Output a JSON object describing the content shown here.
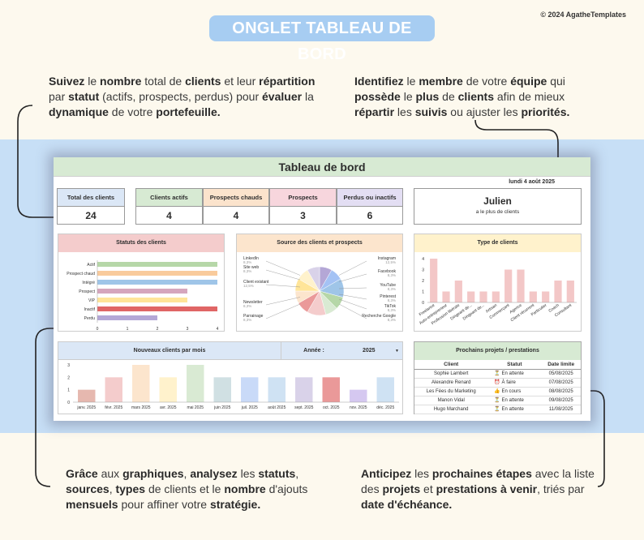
{
  "header": {
    "title": "ONGLET TABLEAU DE BORD",
    "copyright": "© 2024 AgatheTemplates"
  },
  "notes": {
    "top_left": [
      [
        "Suivez",
        "b"
      ],
      [
        " le ",
        ""
      ],
      [
        "nombre",
        "b"
      ],
      [
        " total de ",
        ""
      ],
      [
        "clients",
        "b"
      ],
      [
        " et leur ",
        ""
      ],
      [
        "répartition",
        "b"
      ],
      [
        " par ",
        ""
      ],
      [
        "statut",
        "b"
      ],
      [
        " (actifs, prospects, perdus) pour ",
        ""
      ],
      [
        "évaluer",
        "b"
      ],
      [
        " la ",
        ""
      ],
      [
        "dynamique",
        "b"
      ],
      [
        " de votre ",
        ""
      ],
      [
        "portefeuille.",
        "b"
      ]
    ],
    "top_right": [
      [
        "Identifiez",
        "b"
      ],
      [
        " le ",
        ""
      ],
      [
        "membre",
        "b"
      ],
      [
        " de votre ",
        ""
      ],
      [
        "équipe",
        "b"
      ],
      [
        " qui ",
        ""
      ],
      [
        "possède",
        "b"
      ],
      [
        " le ",
        ""
      ],
      [
        "plus",
        "b"
      ],
      [
        " de ",
        ""
      ],
      [
        "clients",
        "b"
      ],
      [
        " afin de mieux ",
        ""
      ],
      [
        "répartir",
        "b"
      ],
      [
        " les ",
        ""
      ],
      [
        "suivis",
        "b"
      ],
      [
        " ou ajuster les ",
        ""
      ],
      [
        "priorités.",
        "b"
      ]
    ],
    "bottom_left": [
      [
        "Grâce",
        "b"
      ],
      [
        " aux ",
        ""
      ],
      [
        "graphiques",
        "b"
      ],
      [
        ", ",
        ""
      ],
      [
        "analysez",
        "b"
      ],
      [
        " les ",
        ""
      ],
      [
        "statuts",
        "b"
      ],
      [
        ", ",
        ""
      ],
      [
        "sources",
        "b"
      ],
      [
        ", ",
        ""
      ],
      [
        "types",
        "b"
      ],
      [
        " de clients et le ",
        ""
      ],
      [
        "nombre",
        "b"
      ],
      [
        " d'ajouts ",
        ""
      ],
      [
        "mensuels",
        "b"
      ],
      [
        " pour affiner votre ",
        ""
      ],
      [
        "stratégie.",
        "b"
      ]
    ],
    "bottom_right": [
      [
        "Anticipez",
        "b"
      ],
      [
        " les ",
        ""
      ],
      [
        "prochaines étapes",
        "b"
      ],
      [
        " avec la liste des ",
        ""
      ],
      [
        "projets",
        "b"
      ],
      [
        " et ",
        ""
      ],
      [
        "prestations à venir",
        "b"
      ],
      [
        ", triés par ",
        ""
      ],
      [
        "date d'échéance.",
        "b"
      ]
    ]
  },
  "dashboard": {
    "title": "Tableau de bord",
    "date": "lundi 4 août 2025",
    "kpis": [
      {
        "label": "Total des clients",
        "value": "24",
        "color": "#dbe7f6"
      },
      {
        "label": "Clients actifs",
        "value": "4",
        "color": "#d7ead3"
      },
      {
        "label": "Prospects chauds",
        "value": "4",
        "color": "#fbe3cc"
      },
      {
        "label": "Prospects",
        "value": "3",
        "color": "#f7d6dd"
      },
      {
        "label": "Perdus ou inactifs",
        "value": "6",
        "color": "#e3def3"
      }
    ],
    "top_member": {
      "name": "Julien",
      "subtitle": "a le plus de clients"
    },
    "status_panel": {
      "title": "Statuts des clients",
      "header_color": "#f4cccc"
    },
    "source_panel": {
      "title": "Source des clients et prospects",
      "header_color": "#fce5cd"
    },
    "type_panel": {
      "title": "Type de clients",
      "header_color": "#fff2cc"
    },
    "monthly_panel": {
      "title": "Nouveaux clients par mois",
      "year_label": "Année :",
      "year": "2025",
      "header_color": "#dbe7f6"
    },
    "projects": {
      "title": "Prochains projets / prestations",
      "columns": [
        "Client",
        "Statut",
        "Date limite"
      ],
      "rows": [
        {
          "client": "Sophie Lambert",
          "icon": "⏳",
          "status": "En attente",
          "date": "05/08/2025"
        },
        {
          "client": "Alexandre Renard",
          "icon": "⏰",
          "status": "À faire",
          "date": "07/08/2025"
        },
        {
          "client": "Les Fées du Marketing",
          "icon": "👍",
          "status": "En cours",
          "date": "08/08/2025"
        },
        {
          "client": "Manon Vidal",
          "icon": "⏳",
          "status": "En attente",
          "date": "09/08/2025"
        },
        {
          "client": "Hugo Marchand",
          "icon": "⏳",
          "status": "En attente",
          "date": "11/08/2025"
        }
      ]
    }
  },
  "chart_data": [
    {
      "type": "bar",
      "orientation": "horizontal",
      "title": "Statuts des clients",
      "categories": [
        "Actif",
        "Prospect chaud",
        "Intégré",
        "Prospect",
        "VIP",
        "Inactif",
        "Perdu"
      ],
      "values": [
        4,
        4,
        4,
        3,
        3,
        4,
        2
      ],
      "colors": [
        "#b6d7a8",
        "#f9cb9c",
        "#9fc5e8",
        "#d5a6bd",
        "#ffe599",
        "#e06666",
        "#b4a7d6"
      ],
      "xlim": [
        0,
        4
      ],
      "xticks": [
        "0",
        "1",
        "2",
        "3",
        "4"
      ]
    },
    {
      "type": "pie",
      "title": "Source des clients et prospects",
      "labels": [
        "LinkedIn",
        "Site web",
        "Client existant",
        "Newsletter",
        "Parrainage",
        "Instagram",
        "Facebook",
        "YouTube",
        "Pinterest",
        "TikTok",
        "Recherche Google"
      ],
      "values": [
        8.3,
        8.3,
        12.5,
        8.3,
        8.3,
        12.5,
        8.3,
        8.3,
        8.3,
        8.3,
        8.3
      ],
      "pct_labels": [
        "8,3%",
        "8,3%",
        "12,5%",
        "8,3%",
        "8,3%",
        "12,5%",
        "8,3%",
        "8,3%",
        "8,3%",
        "8,3%",
        "8,3%"
      ],
      "colors": [
        "#b4a7d6",
        "#a4c2f4",
        "#9fc5e8",
        "#b6d7a8",
        "#d9ead3",
        "#f4cccc",
        "#ea9999",
        "#fce5cd",
        "#ffe599",
        "#fff2cc",
        "#d9d2e9"
      ]
    },
    {
      "type": "bar",
      "title": "Type de clients",
      "categories": [
        "Freelance",
        "Auto-entrepreneur",
        "Profession libérale",
        "Dirigeant de...",
        "Dirigeant de...",
        "Artisan",
        "Commerçant",
        "Agence",
        "Client récurrent",
        "Particulier",
        "Coach",
        "Consultant"
      ],
      "values": [
        4,
        1,
        2,
        1,
        1,
        1,
        3,
        3,
        1,
        1,
        2,
        2
      ],
      "ylim": [
        0,
        4
      ],
      "yticks": [
        "0",
        "1",
        "2",
        "3",
        "4"
      ],
      "color": "#ea9999"
    },
    {
      "type": "bar",
      "title": "Nouveaux clients par mois",
      "categories": [
        "janv. 2025",
        "févr. 2025",
        "mars 2025",
        "avr. 2025",
        "mai 2025",
        "juin 2025",
        "juil. 2025",
        "août 2025",
        "sept. 2025",
        "oct. 2025",
        "nov. 2025",
        "déc. 2025"
      ],
      "values": [
        1,
        2,
        3,
        2,
        3,
        2,
        2,
        2,
        2,
        2,
        1,
        2
      ],
      "colors": [
        "#e6b8af",
        "#f4cccc",
        "#fce5cd",
        "#fff2cc",
        "#d9ead3",
        "#d0e0e3",
        "#c9daf8",
        "#cfe2f3",
        "#d9d2e9",
        "#ea9999",
        "#d5c8f0",
        "#cfe2f3"
      ],
      "ylim": [
        0,
        3
      ],
      "yticks": [
        "0",
        "1",
        "2",
        "3"
      ]
    }
  ]
}
